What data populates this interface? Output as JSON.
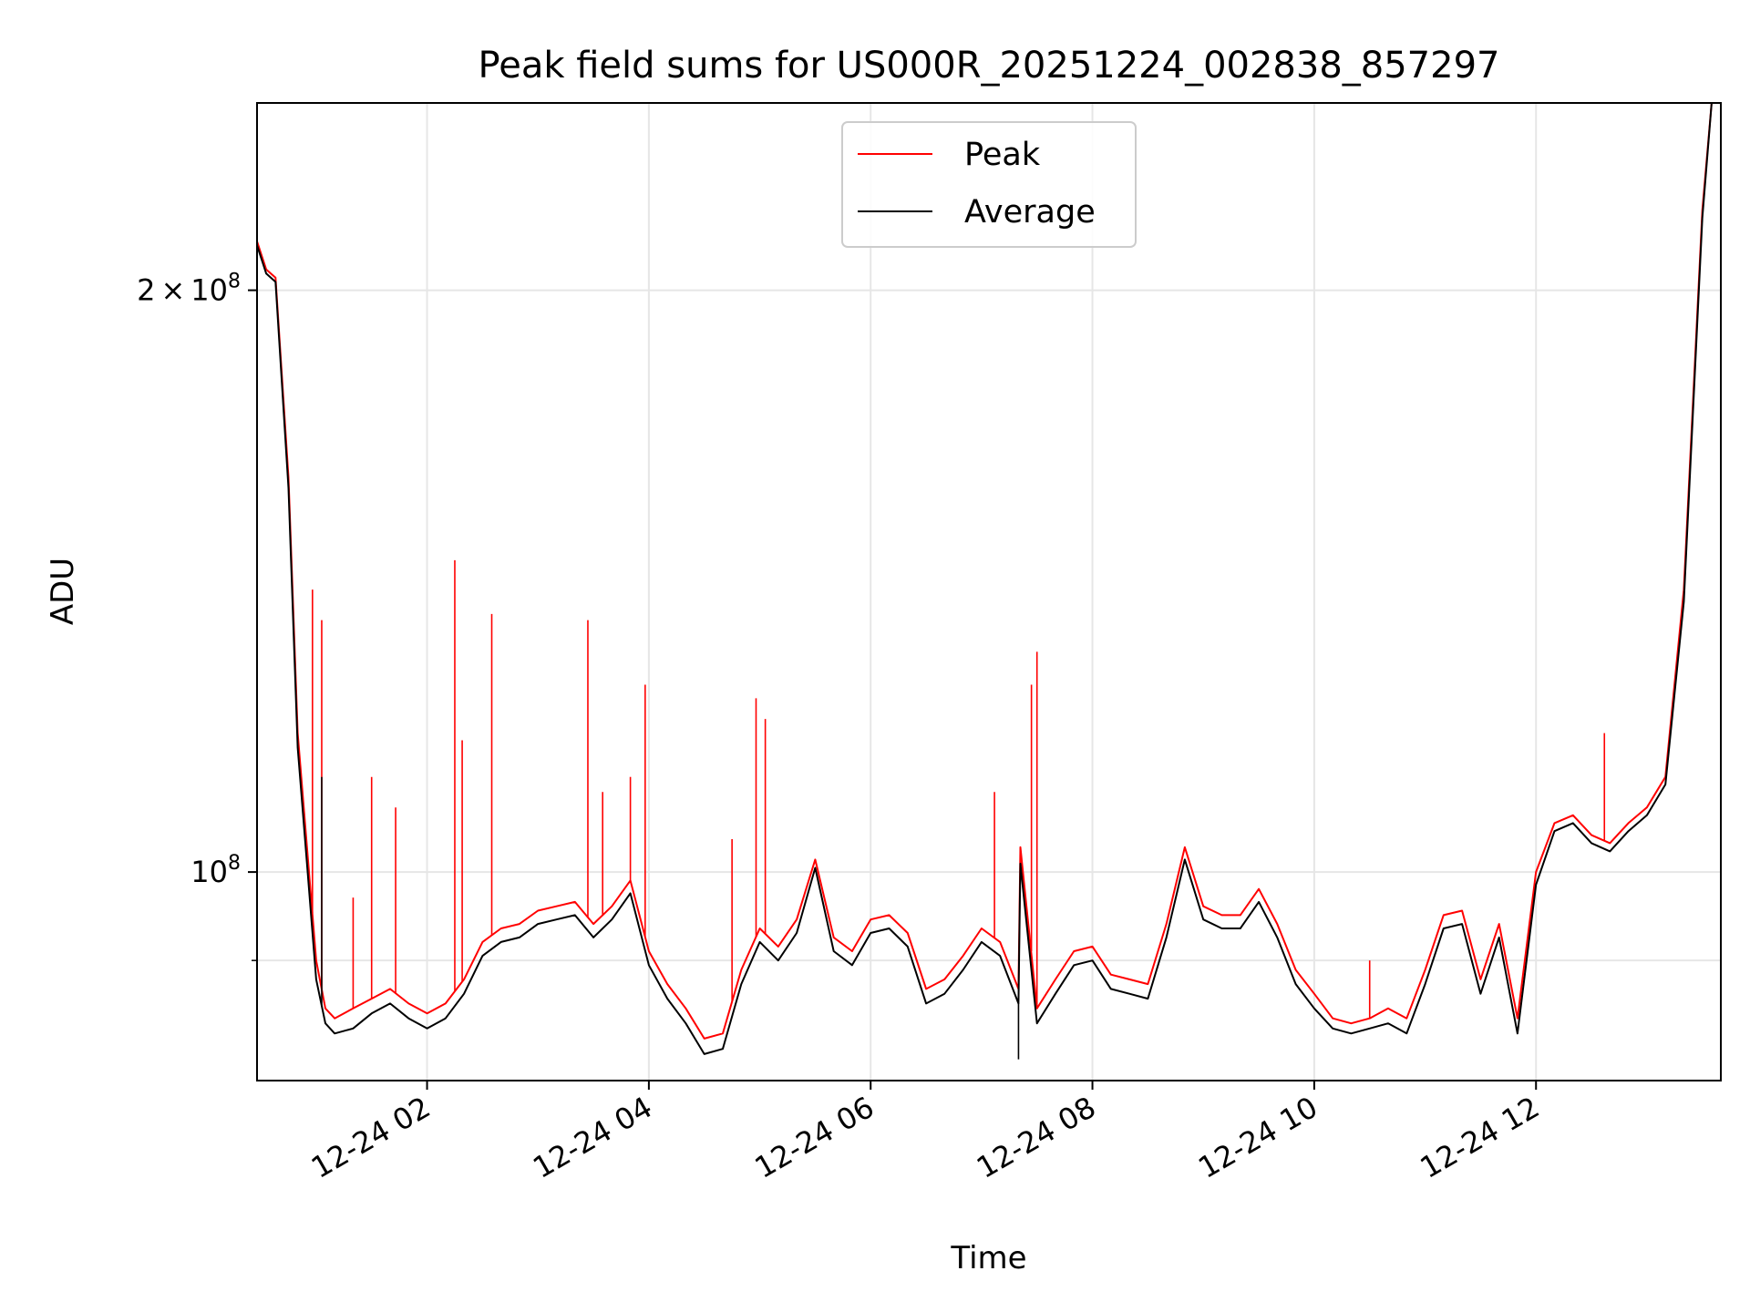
{
  "chart_data": {
    "type": "line",
    "title": "Peak field sums for US000R_20251224_002838_857297",
    "xlabel": "Time",
    "ylabel": "ADU",
    "yscale": "log",
    "xlim": [
      "2025-12-24 00:28",
      "2025-12-24 13:40"
    ],
    "ylim": [
      78000000,
      250000000
    ],
    "grid": true,
    "legend_position": "upper center",
    "x_ticks": [
      {
        "value": "2025-12-24 02:00",
        "label": "12-24 02"
      },
      {
        "value": "2025-12-24 04:00",
        "label": "12-24 04"
      },
      {
        "value": "2025-12-24 06:00",
        "label": "12-24 06"
      },
      {
        "value": "2025-12-24 08:00",
        "label": "12-24 08"
      },
      {
        "value": "2025-12-24 10:00",
        "label": "12-24 10"
      },
      {
        "value": "2025-12-24 12:00",
        "label": "12-24 12"
      }
    ],
    "y_ticks": [
      {
        "value": 100000000,
        "base": "10",
        "exp": "8"
      },
      {
        "value": 200000000,
        "mant": "2",
        "base": "10",
        "exp": "8"
      }
    ],
    "y_minor_ticks": [
      90000000
    ],
    "series": [
      {
        "name": "Peak",
        "color": "#ff0000",
        "x": [
          "00:28",
          "00:33",
          "00:38",
          "00:45",
          "00:50",
          "00:55",
          "01:00",
          "01:05",
          "01:10",
          "01:20",
          "01:30",
          "01:40",
          "01:50",
          "02:00",
          "02:10",
          "02:20",
          "02:30",
          "02:40",
          "02:50",
          "03:00",
          "03:10",
          "03:20",
          "03:30",
          "03:40",
          "03:50",
          "04:00",
          "04:10",
          "04:20",
          "04:30",
          "04:40",
          "04:50",
          "05:00",
          "05:10",
          "05:20",
          "05:30",
          "05:40",
          "05:50",
          "06:00",
          "06:10",
          "06:20",
          "06:30",
          "06:40",
          "06:50",
          "07:00",
          "07:10",
          "07:20",
          "07:21",
          "07:30",
          "07:40",
          "07:50",
          "08:00",
          "08:10",
          "08:20",
          "08:30",
          "08:40",
          "08:50",
          "09:00",
          "09:10",
          "09:20",
          "09:30",
          "09:40",
          "09:50",
          "10:00",
          "10:10",
          "10:20",
          "10:30",
          "10:40",
          "10:50",
          "11:00",
          "11:10",
          "11:20",
          "11:30",
          "11:40",
          "11:50",
          "12:00",
          "12:10",
          "12:20",
          "12:30",
          "12:40",
          "12:50",
          "13:00",
          "13:10",
          "13:20",
          "13:30",
          "13:35",
          "13:40"
        ],
        "y": [
          212000000,
          205000000,
          203000000,
          160000000,
          118000000,
          103000000,
          90000000,
          85000000,
          84000000,
          85000000,
          86000000,
          87000000,
          85500000,
          84500000,
          85500000,
          88000000,
          92000000,
          93500000,
          94000000,
          95500000,
          96000000,
          96500000,
          94000000,
          96000000,
          99000000,
          91000000,
          87500000,
          85000000,
          82000000,
          82500000,
          89000000,
          93500000,
          91500000,
          94500000,
          101500000,
          92500000,
          91000000,
          94500000,
          95000000,
          93000000,
          87000000,
          88000000,
          90500000,
          93500000,
          92000000,
          87000000,
          103000000,
          85000000,
          88000000,
          91000000,
          91500000,
          88500000,
          88000000,
          87500000,
          94000000,
          103000000,
          96000000,
          95000000,
          95000000,
          98000000,
          94000000,
          89000000,
          86500000,
          84000000,
          83500000,
          84000000,
          85000000,
          84000000,
          89000000,
          95000000,
          95500000,
          88000000,
          94000000,
          84000000,
          100000000,
          106000000,
          107000000,
          104500000,
          103500000,
          106000000,
          108000000,
          112000000,
          140000000,
          220000000,
          250000000,
          250000000
        ],
        "spikes": [
          {
            "x": "00:58",
            "y": 140000000
          },
          {
            "x": "01:03",
            "y": 135000000
          },
          {
            "x": "01:20",
            "y": 97000000
          },
          {
            "x": "01:30",
            "y": 112000000
          },
          {
            "x": "01:43",
            "y": 108000000
          },
          {
            "x": "02:15",
            "y": 145000000
          },
          {
            "x": "02:19",
            "y": 117000000
          },
          {
            "x": "02:35",
            "y": 136000000
          },
          {
            "x": "03:27",
            "y": 135000000
          },
          {
            "x": "03:35",
            "y": 110000000
          },
          {
            "x": "03:50",
            "y": 112000000
          },
          {
            "x": "03:58",
            "y": 125000000
          },
          {
            "x": "04:45",
            "y": 104000000
          },
          {
            "x": "04:58",
            "y": 123000000
          },
          {
            "x": "05:03",
            "y": 120000000
          },
          {
            "x": "07:07",
            "y": 110000000
          },
          {
            "x": "07:27",
            "y": 125000000
          },
          {
            "x": "07:30",
            "y": 130000000
          },
          {
            "x": "10:30",
            "y": 90000000
          },
          {
            "x": "12:37",
            "y": 118000000
          }
        ]
      },
      {
        "name": "Average",
        "color": "#000000",
        "x": [
          "00:28",
          "00:33",
          "00:38",
          "00:45",
          "00:50",
          "00:55",
          "01:00",
          "01:05",
          "01:10",
          "01:20",
          "01:30",
          "01:40",
          "01:50",
          "02:00",
          "02:10",
          "02:20",
          "02:30",
          "02:40",
          "02:50",
          "03:00",
          "03:10",
          "03:20",
          "03:30",
          "03:40",
          "03:50",
          "04:00",
          "04:10",
          "04:20",
          "04:30",
          "04:40",
          "04:50",
          "05:00",
          "05:10",
          "05:20",
          "05:30",
          "05:40",
          "05:50",
          "06:00",
          "06:10",
          "06:20",
          "06:30",
          "06:40",
          "06:50",
          "07:00",
          "07:10",
          "07:20",
          "07:21",
          "07:30",
          "07:40",
          "07:50",
          "08:00",
          "08:10",
          "08:20",
          "08:30",
          "08:40",
          "08:50",
          "09:00",
          "09:10",
          "09:20",
          "09:30",
          "09:40",
          "09:50",
          "10:00",
          "10:10",
          "10:20",
          "10:30",
          "10:40",
          "10:50",
          "11:00",
          "11:10",
          "11:20",
          "11:30",
          "11:40",
          "11:50",
          "12:00",
          "12:10",
          "12:20",
          "12:30",
          "12:40",
          "12:50",
          "13:00",
          "13:10",
          "13:20",
          "13:30",
          "13:35",
          "13:40"
        ],
        "y": [
          211000000,
          204000000,
          202000000,
          158000000,
          116000000,
          101000000,
          88000000,
          83500000,
          82500000,
          83000000,
          84500000,
          85500000,
          84000000,
          83000000,
          84000000,
          86500000,
          90500000,
          92000000,
          92500000,
          94000000,
          94500000,
          95000000,
          92500000,
          94500000,
          97500000,
          89500000,
          86000000,
          83500000,
          80500000,
          81000000,
          87500000,
          92000000,
          90000000,
          93000000,
          100500000,
          91000000,
          89500000,
          93000000,
          93500000,
          91500000,
          85500000,
          86500000,
          89000000,
          92000000,
          90500000,
          85500000,
          101000000,
          83500000,
          86500000,
          89500000,
          90000000,
          87000000,
          86500000,
          86000000,
          92500000,
          101500000,
          94500000,
          93500000,
          93500000,
          96500000,
          92500000,
          87500000,
          85000000,
          83000000,
          82500000,
          83000000,
          83500000,
          82500000,
          87500000,
          93500000,
          94000000,
          86500000,
          92500000,
          82500000,
          98500000,
          105000000,
          106000000,
          103500000,
          102500000,
          105000000,
          107000000,
          111000000,
          138000000,
          218000000,
          250000000,
          250000000
        ],
        "spikes": [
          {
            "x": "01:03",
            "y": 112000000
          },
          {
            "x": "07:20",
            "y": 80000000
          }
        ]
      }
    ]
  }
}
